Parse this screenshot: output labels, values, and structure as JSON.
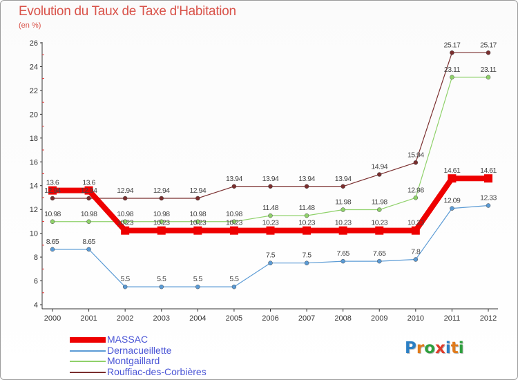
{
  "header": {
    "title": "Evolution du Taux de Taxe d'Habitation",
    "unit": "(en %)"
  },
  "logo": {
    "letters": [
      "P",
      "r",
      "o",
      "x",
      "i",
      "t",
      "i"
    ],
    "colors": [
      "#2b7fc4",
      "#e07b1c",
      "#2e9f3e",
      "#e03b2b",
      "#2b7fc4",
      "#e07b1c",
      "#2e9f3e"
    ]
  },
  "chart_data": {
    "type": "line",
    "title": "Evolution du Taux de Taxe d'Habitation",
    "ylabel": "(en %)",
    "xlabel": "",
    "x": [
      "2000",
      "2001",
      "2002",
      "2003",
      "2004",
      "2005",
      "2006",
      "2007",
      "2008",
      "2009",
      "2010",
      "2011",
      "2012"
    ],
    "ylim": [
      4,
      26
    ],
    "yticks": [
      4,
      6,
      8,
      10,
      12,
      14,
      16,
      18,
      20,
      22,
      24,
      26
    ],
    "grid": false,
    "legend_position": "bottom-left",
    "series": [
      {
        "name": "MASSAC",
        "color": "#ee0000",
        "highlight": true,
        "values": [
          13.6,
          13.6,
          10.23,
          10.23,
          10.23,
          10.23,
          10.23,
          10.23,
          10.23,
          10.23,
          10.23,
          14.61,
          14.61
        ],
        "labels": [
          "13.6",
          "13.6",
          "10.23",
          "10.23",
          "10.23",
          "10.23",
          "10.23",
          "10.23",
          "10.23",
          "10.23",
          "10.23",
          "14.61",
          "14.61"
        ]
      },
      {
        "name": "Dernacueillette",
        "color": "#5b9bd5",
        "values": [
          8.65,
          8.65,
          5.5,
          5.5,
          5.5,
          5.5,
          7.5,
          7.5,
          7.65,
          7.65,
          7.8,
          12.09,
          12.33
        ],
        "labels": [
          "8.65",
          "8.65",
          "5.5",
          "5.5",
          "5.5",
          "5.5",
          "7.5",
          "7.5",
          "7.65",
          "7.65",
          "7.8",
          "12.09",
          "12.33"
        ]
      },
      {
        "name": "Montgaillard",
        "color": "#8fd16a",
        "values": [
          10.98,
          10.98,
          10.98,
          10.98,
          10.98,
          10.98,
          11.48,
          11.48,
          11.98,
          11.98,
          12.98,
          23.11,
          23.11
        ],
        "labels": [
          "10.98",
          "10.98",
          "10.98",
          "10.98",
          "10.98",
          "10.98",
          "11.48",
          "11.48",
          "11.98",
          "11.98",
          "12.98",
          "23.11",
          "23.11"
        ]
      },
      {
        "name": "Rouffiac-des-Corbières",
        "color": "#7a2e2e",
        "values": [
          12.94,
          12.94,
          12.94,
          12.94,
          12.94,
          13.94,
          13.94,
          13.94,
          13.94,
          14.94,
          15.94,
          25.17,
          25.17
        ],
        "labels": [
          "12.94",
          "12.94",
          "12.94",
          "12.94",
          "12.94",
          "13.94",
          "13.94",
          "13.94",
          "13.94",
          "14.94",
          "15.94",
          "25.17",
          "25.17"
        ]
      }
    ]
  }
}
